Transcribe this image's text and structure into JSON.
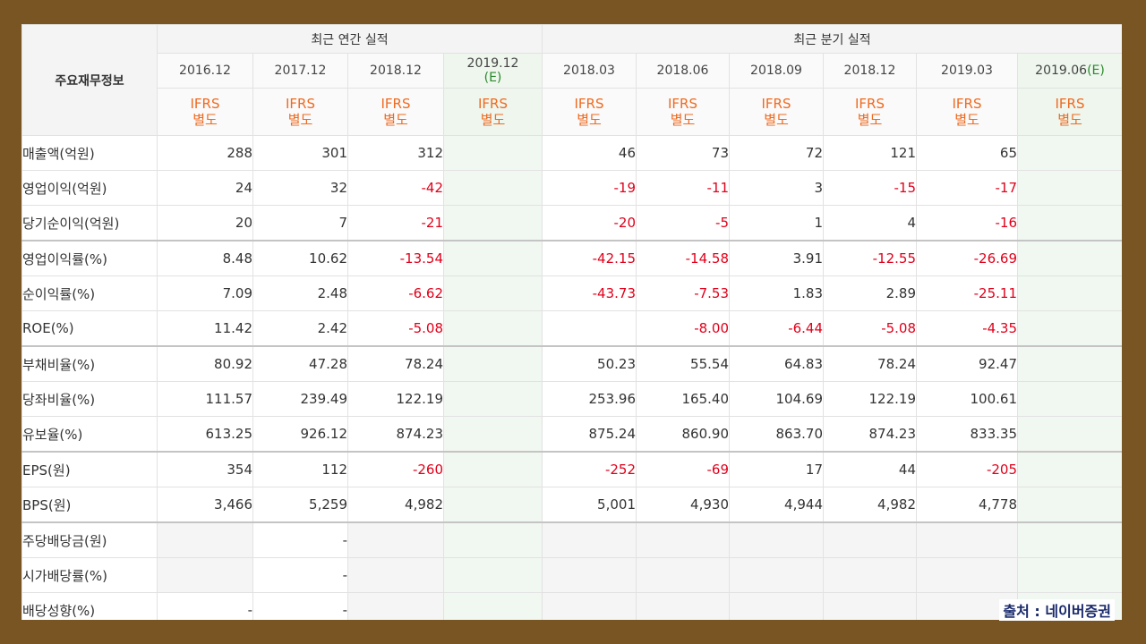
{
  "table": {
    "corner_label": "주요재무정보",
    "groups": [
      {
        "label": "최근 연간 실적"
      },
      {
        "label": "최근 분기 실적"
      }
    ],
    "columns": [
      {
        "date": "2016.12",
        "est": "",
        "line1": "IFRS",
        "line2": "별도"
      },
      {
        "date": "2017.12",
        "est": "",
        "line1": "IFRS",
        "line2": "별도"
      },
      {
        "date": "2018.12",
        "est": "",
        "line1": "IFRS",
        "line2": "별도"
      },
      {
        "date": "2019.12",
        "est": "(E)",
        "line1": "IFRS",
        "line2": "별도"
      },
      {
        "date": "2018.03",
        "est": "",
        "line1": "IFRS",
        "line2": "별도"
      },
      {
        "date": "2018.06",
        "est": "",
        "line1": "IFRS",
        "line2": "별도"
      },
      {
        "date": "2018.09",
        "est": "",
        "line1": "IFRS",
        "line2": "별도"
      },
      {
        "date": "2018.12",
        "est": "",
        "line1": "IFRS",
        "line2": "별도"
      },
      {
        "date": "2019.03",
        "est": "",
        "line1": "IFRS",
        "line2": "별도"
      },
      {
        "date": "2019.06",
        "est": "(E)",
        "line1": "IFRS",
        "line2": "별도"
      }
    ],
    "rows": [
      {
        "label": "매출액(억원)",
        "values": [
          "288",
          "301",
          "312",
          "",
          "46",
          "73",
          "72",
          "121",
          "65",
          ""
        ]
      },
      {
        "label": "영업이익(억원)",
        "values": [
          "24",
          "32",
          "-42",
          "",
          "-19",
          "-11",
          "3",
          "-15",
          "-17",
          ""
        ]
      },
      {
        "label": "당기순이익(억원)",
        "values": [
          "20",
          "7",
          "-21",
          "",
          "-20",
          "-5",
          "1",
          "4",
          "-16",
          ""
        ]
      },
      {
        "label": "영업이익률(%)",
        "values": [
          "8.48",
          "10.62",
          "-13.54",
          "",
          "-42.15",
          "-14.58",
          "3.91",
          "-12.55",
          "-26.69",
          ""
        ]
      },
      {
        "label": "순이익률(%)",
        "values": [
          "7.09",
          "2.48",
          "-6.62",
          "",
          "-43.73",
          "-7.53",
          "1.83",
          "2.89",
          "-25.11",
          ""
        ]
      },
      {
        "label": "ROE(%)",
        "values": [
          "11.42",
          "2.42",
          "-5.08",
          "",
          "",
          "-8.00",
          "-6.44",
          "-5.08",
          "-4.35",
          ""
        ]
      },
      {
        "label": "부채비율(%)",
        "values": [
          "80.92",
          "47.28",
          "78.24",
          "",
          "50.23",
          "55.54",
          "64.83",
          "78.24",
          "92.47",
          ""
        ]
      },
      {
        "label": "당좌비율(%)",
        "values": [
          "111.57",
          "239.49",
          "122.19",
          "",
          "253.96",
          "165.40",
          "104.69",
          "122.19",
          "100.61",
          ""
        ]
      },
      {
        "label": "유보율(%)",
        "values": [
          "613.25",
          "926.12",
          "874.23",
          "",
          "875.24",
          "860.90",
          "863.70",
          "874.23",
          "833.35",
          ""
        ]
      },
      {
        "label": "EPS(원)",
        "values": [
          "354",
          "112",
          "-260",
          "",
          "-252",
          "-69",
          "17",
          "44",
          "-205",
          ""
        ]
      },
      {
        "label": "BPS(원)",
        "values": [
          "3,466",
          "5,259",
          "4,982",
          "",
          "5,001",
          "4,930",
          "4,944",
          "4,982",
          "4,778",
          ""
        ]
      },
      {
        "label": "주당배당금(원)",
        "values": [
          "",
          "-",
          "",
          "",
          "",
          "",
          "",
          "",
          "",
          ""
        ]
      },
      {
        "label": "시가배당률(%)",
        "values": [
          "",
          "-",
          "",
          "",
          "",
          "",
          "",
          "",
          "",
          ""
        ]
      },
      {
        "label": "배당성향(%)",
        "values": [
          "-",
          "-",
          "",
          "",
          "",
          "",
          "",
          "",
          "",
          ""
        ]
      }
    ]
  },
  "source_caption": "출처 : 네이버증권",
  "colors": {
    "frame": "#7a5524",
    "ifrs_text": "#ef6a1f",
    "negative": "#e0001a",
    "estimate": "#2a8a2a",
    "caption": "#1a2a6b"
  }
}
